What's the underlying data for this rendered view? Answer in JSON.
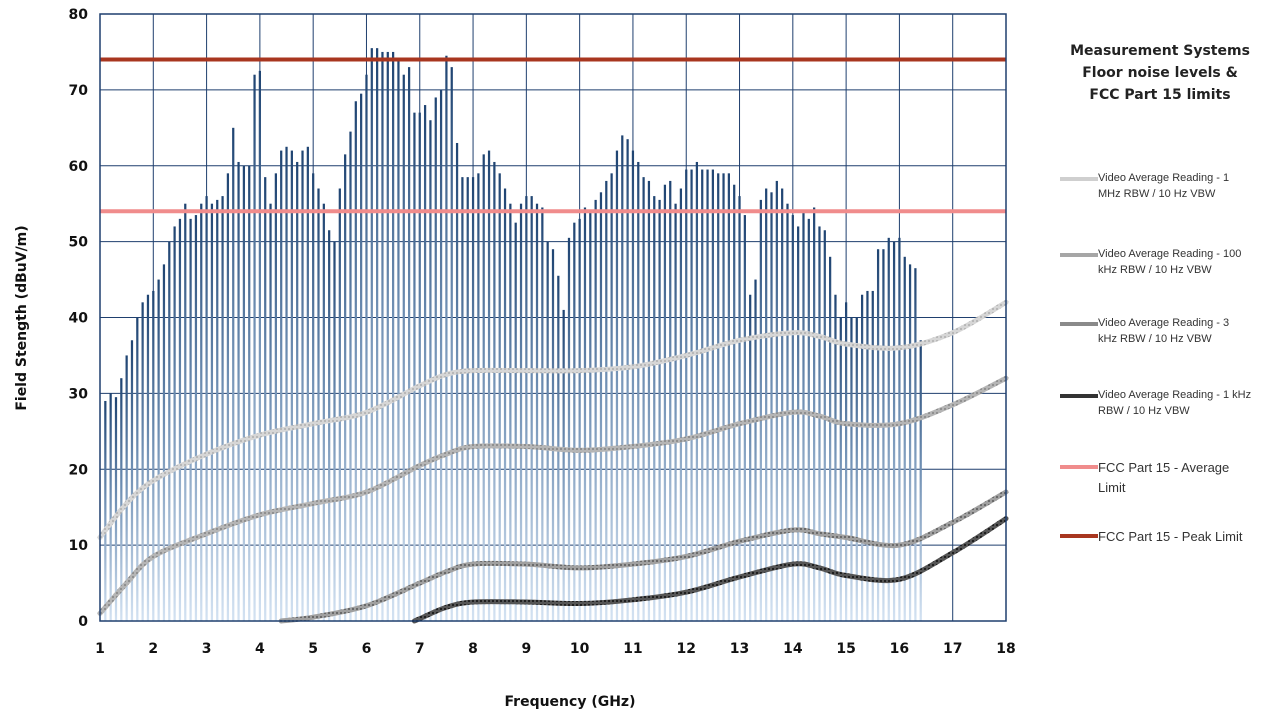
{
  "chart_data": {
    "type": "bar",
    "title": "",
    "xlabel": "Frequency (GHz)",
    "ylabel": "Field Stength (dBuV/m)",
    "xlim": [
      1,
      18
    ],
    "ylim": [
      0,
      80
    ],
    "x_ticks": [
      1,
      2,
      3,
      4,
      5,
      6,
      7,
      8,
      9,
      10,
      11,
      12,
      13,
      14,
      15,
      16,
      17,
      18
    ],
    "y_ticks": [
      0,
      10,
      20,
      30,
      40,
      50,
      60,
      70,
      80
    ],
    "grid": true,
    "legend_title": [
      "Measurement Systems",
      "Floor noise levels &",
      "FCC Part 15 limits"
    ],
    "legend_position": "right",
    "bar_series": {
      "name": "",
      "color": "#2b4e7e",
      "x_start": 1.1,
      "x_step": 0.1,
      "values": [
        29,
        30,
        29.5,
        32,
        35,
        37,
        40,
        42,
        43,
        43.5,
        45,
        47,
        50,
        52,
        53,
        55,
        53,
        53.5,
        55,
        56,
        55,
        55.5,
        56,
        59,
        65,
        60.5,
        60,
        60,
        72,
        72.5,
        58.5,
        55,
        59,
        62,
        62.5,
        62,
        60.5,
        62,
        62.5,
        59,
        57,
        55,
        51.5,
        50,
        57,
        61.5,
        64.5,
        68.5,
        69.5,
        72,
        75.5,
        75.5,
        75,
        75,
        75,
        74,
        72,
        73,
        67,
        67,
        68,
        66,
        69,
        70,
        74.5,
        73,
        63,
        58.5,
        58.5,
        58.5,
        59,
        61.5,
        62,
        60.5,
        59,
        57,
        55,
        52.5,
        55,
        56,
        56,
        55,
        54.5,
        50,
        49,
        45.5,
        41,
        50.5,
        52.5,
        53,
        54.5,
        54,
        55.5,
        56.5,
        58,
        59,
        62,
        64,
        63.5,
        62,
        60.5,
        58.5,
        58,
        56,
        55.5,
        57.5,
        58,
        55,
        57,
        59.5,
        59.5,
        60.5,
        59.5,
        59.5,
        59.5,
        59,
        59,
        59,
        57.5,
        56,
        53.5,
        43,
        45,
        55.5,
        57,
        56.5,
        58,
        57,
        55,
        53.5,
        52,
        54,
        53,
        54.5,
        52,
        51.5,
        48,
        43,
        40,
        42,
        40,
        40,
        43,
        43.5,
        43.5,
        49,
        49,
        50.5,
        50,
        50.5,
        48,
        47,
        46.5,
        37
      ]
    },
    "series": [
      {
        "name": "Video Average Reading - 1 MHz RBW / 10 Hz VBW",
        "color": "#c8c8c8",
        "x": [
          1,
          1.5,
          2,
          3,
          4,
          5,
          6,
          7,
          7.5,
          8,
          9,
          10,
          11,
          12,
          13,
          14,
          14.5,
          15,
          16,
          17,
          18
        ],
        "y": [
          11,
          15.5,
          18.5,
          22,
          24.5,
          26,
          27.5,
          31,
          32.5,
          33,
          33,
          33,
          33.5,
          35,
          37,
          38,
          37.5,
          36.5,
          36,
          38,
          42
        ]
      },
      {
        "name": "Video Average Reading - 100 kHz RBW / 10 Hz VBW",
        "color": "#a6a6a6",
        "x": [
          1,
          1.5,
          2,
          3,
          4,
          5,
          6,
          7,
          7.5,
          8,
          9,
          10,
          11,
          12,
          13,
          14,
          14.5,
          15,
          16,
          17,
          18
        ],
        "y": [
          1,
          5,
          8.5,
          11.5,
          14,
          15.5,
          17,
          20.5,
          22,
          23,
          23,
          22.5,
          23,
          24,
          26,
          27.5,
          27,
          26,
          26,
          28.5,
          32
        ]
      },
      {
        "name": "Video Average Reading - 3 kHz RBW / 10 Hz VBW",
        "color": "#8a8a8a",
        "x": [
          4.4,
          5,
          6,
          7,
          7.5,
          8,
          9,
          10,
          11,
          12,
          13,
          14,
          14.5,
          15,
          16,
          17,
          18
        ],
        "y": [
          0,
          0.5,
          2,
          5,
          6.5,
          7.5,
          7.5,
          7,
          7.5,
          8.5,
          10.5,
          12,
          11.5,
          11,
          10,
          13,
          17
        ]
      },
      {
        "name": "Video Average Reading - 1 kHz RBW / 10 Hz VBW",
        "color": "#3a3a3a",
        "x": [
          6.9,
          7,
          7.5,
          8,
          9,
          10,
          11,
          12,
          13,
          14,
          14.5,
          15,
          16,
          17,
          18
        ],
        "y": [
          0,
          0.3,
          1.8,
          2.5,
          2.5,
          2.3,
          2.8,
          3.8,
          5.8,
          7.5,
          7,
          6,
          5.5,
          9,
          13.5
        ]
      }
    ],
    "reference_lines": [
      {
        "name": "FCC Part 15 - Average Limit",
        "value": 54,
        "color": "#f08c8c"
      },
      {
        "name": "FCC Part 15 - Peak Limit",
        "value": 74,
        "color": "#a8361f"
      }
    ]
  },
  "legend": {
    "items": [
      {
        "label_lines": [
          "Video Average Reading - 1",
          "MHz RBW / 10 Hz VBW"
        ]
      },
      {
        "label_lines": [
          "Video Average Reading - 100",
          "kHz RBW / 10 Hz VBW"
        ]
      },
      {
        "label_lines": [
          "Video Average Reading - 3",
          "kHz RBW / 10 Hz VBW"
        ]
      },
      {
        "label_lines": [
          "Video Average Reading - 1 kHz",
          "RBW / 10 Hz VBW"
        ]
      },
      {
        "label_lines": [
          "FCC Part 15 - Average",
          "Limit"
        ]
      },
      {
        "label_lines": [
          "FCC Part 15 - Peak Limit"
        ]
      }
    ]
  }
}
